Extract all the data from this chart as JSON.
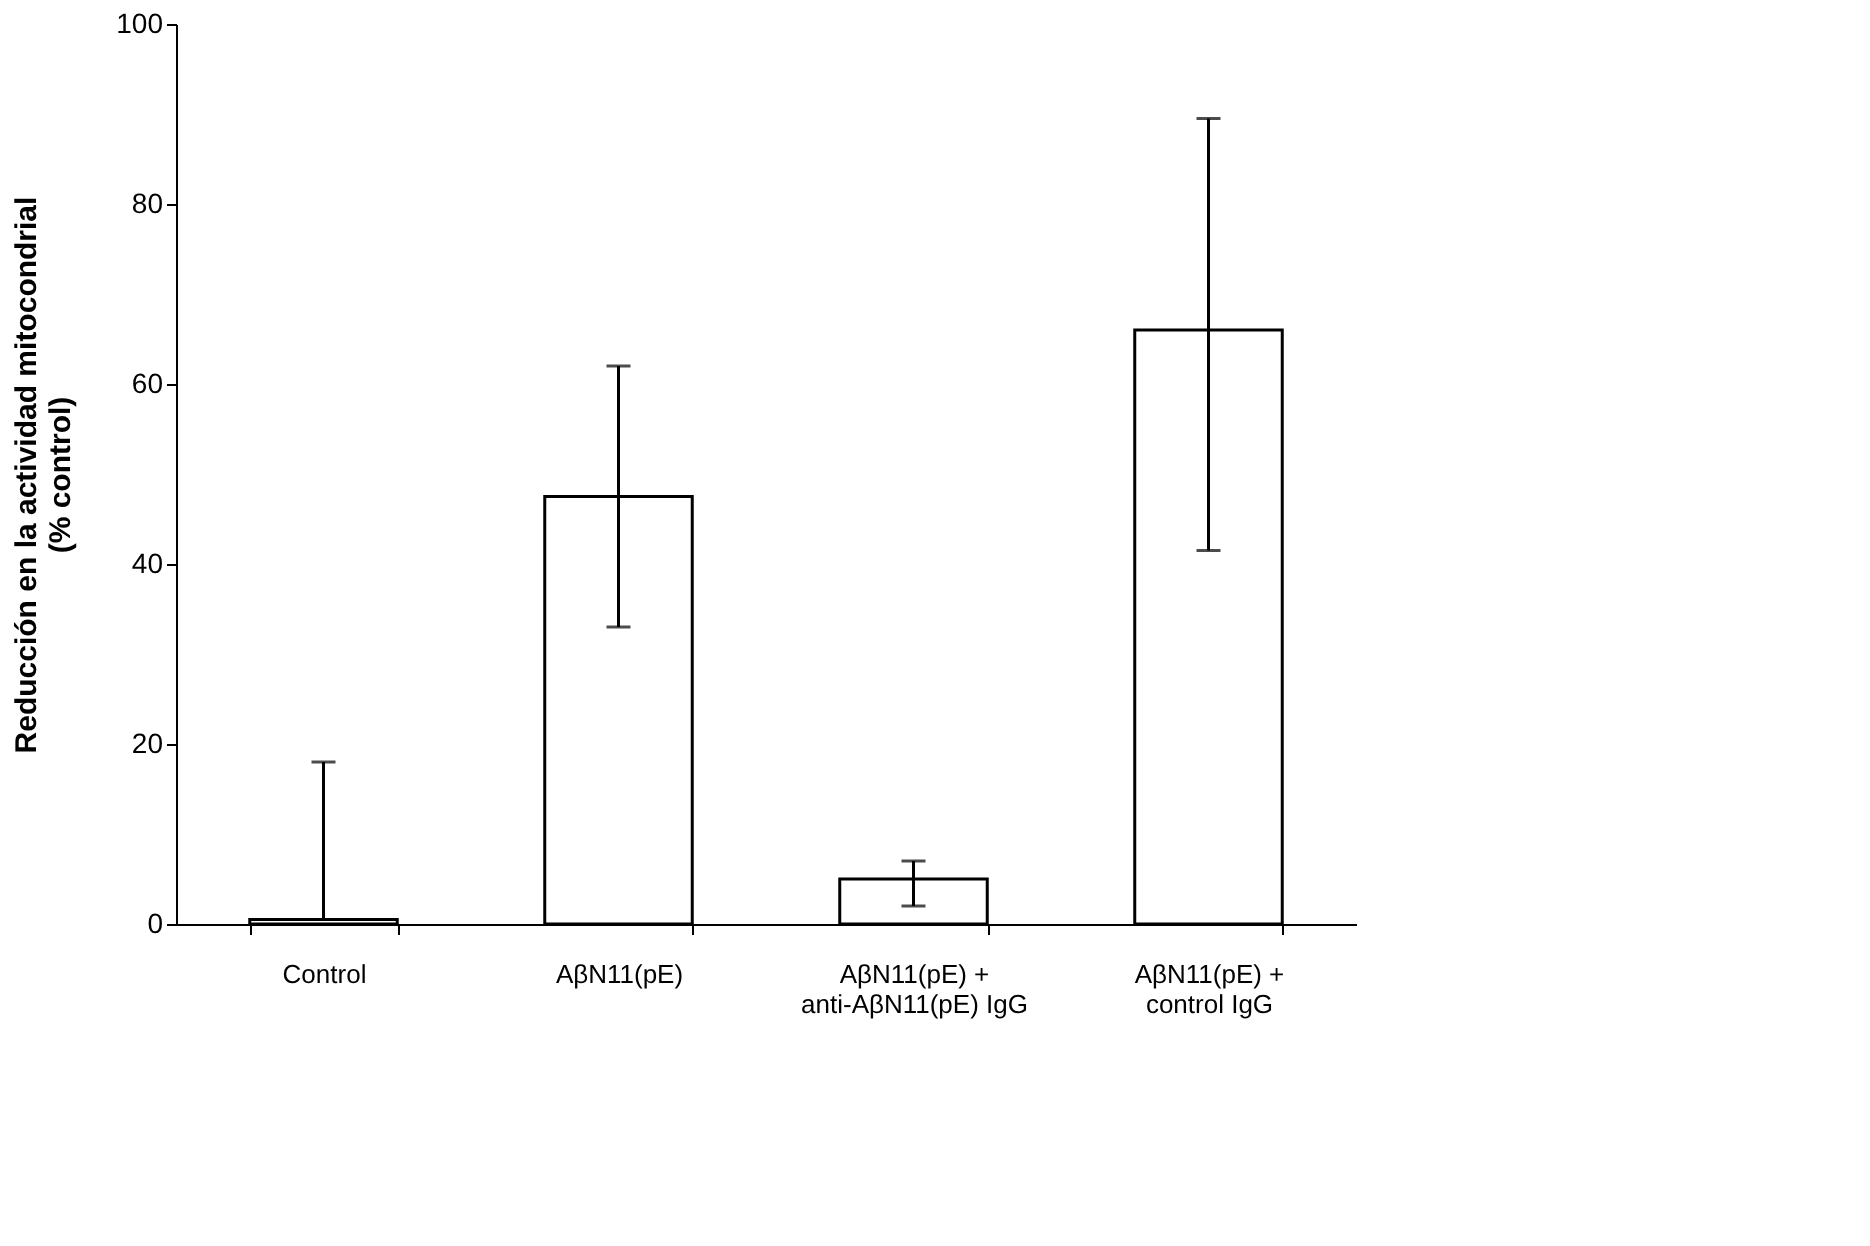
{
  "chart_data": {
    "type": "bar",
    "ylabel": "Reducción en la actividad mitocondrial\n(% control)",
    "categories": [
      "Control",
      "AβN11(pE)",
      "AβN11(pE) +\nanti-AβN11(pE) IgG",
      "AβN11(pE) +\ncontrol IgG"
    ],
    "values": [
      0.5,
      47.5,
      5,
      66
    ],
    "errors": [
      [
        0.5,
        18
      ],
      [
        33,
        62
      ],
      [
        2,
        7
      ],
      [
        41.5,
        89.5
      ]
    ],
    "color": "#ffffff",
    "ylim": [
      0,
      100
    ],
    "yticks": [
      0,
      20,
      40,
      60,
      80,
      100
    ],
    "grid": false
  }
}
